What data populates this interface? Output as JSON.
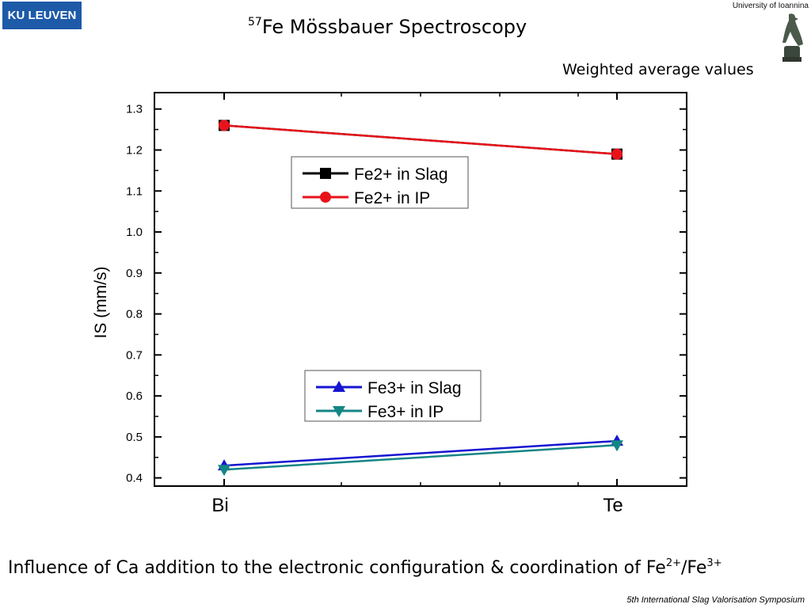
{
  "header": {
    "logo_text": "KU LEUVEN",
    "university": "University of Ioannina",
    "title_isotope": "57",
    "title_main": "Fe Mössbauer Spectroscopy",
    "subtitle": "Weighted average values"
  },
  "caption": {
    "part1": "Influence of Ca addition to the electronic configuration & coordination of Fe",
    "sup1": "2+",
    "mid": "/Fe",
    "sup2": "3+"
  },
  "footer": "5th International Slag Valorisation Symposium",
  "chart_data": {
    "type": "line",
    "categories": [
      "Bi",
      "Te"
    ],
    "ylabel": "IS (mm/s)",
    "xlabel": "",
    "ylim": [
      0.38,
      1.34
    ],
    "yticks": [
      "0.4",
      "0.5",
      "0.6",
      "0.7",
      "0.8",
      "0.9",
      "1.0",
      "1.1",
      "1.2",
      "1.3"
    ],
    "grid": false,
    "series": [
      {
        "name": "Fe2+ in Slag",
        "values": [
          1.26,
          1.19
        ],
        "color": "#000000",
        "marker": "square"
      },
      {
        "name": "Fe2+ in IP",
        "values": [
          1.26,
          1.19
        ],
        "color": "#e8121b",
        "marker": "circle"
      },
      {
        "name": "Fe3+ in Slag",
        "values": [
          0.43,
          0.49
        ],
        "color": "#1515d0",
        "marker": "triangle-up"
      },
      {
        "name": "Fe3+ in IP",
        "values": [
          0.42,
          0.48
        ],
        "color": "#148585",
        "marker": "triangle-down"
      }
    ],
    "legends": [
      {
        "placement": "upper-left",
        "series": [
          0,
          1
        ]
      },
      {
        "placement": "lower-center",
        "series": [
          2,
          3
        ]
      }
    ]
  }
}
